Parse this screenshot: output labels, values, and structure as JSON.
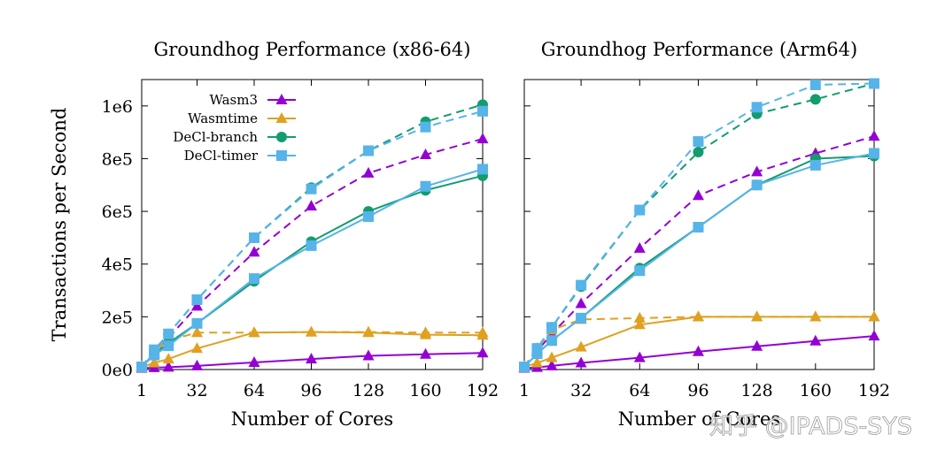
{
  "watermark": "知乎 @IPADS-SYS",
  "chart_data": [
    {
      "type": "line",
      "title": "Groundhog Performance (x86-64)",
      "xlabel": "Number of Cores",
      "ylabel": "Transactions per Second",
      "xlim": [
        1,
        192
      ],
      "ylim": [
        0,
        1100000
      ],
      "xticks": [
        1,
        32,
        64,
        96,
        128,
        160,
        192
      ],
      "xtick_labels": [
        "1",
        "32",
        "64",
        "96",
        "128",
        "160",
        "192"
      ],
      "yticks": [
        0,
        200000,
        400000,
        600000,
        800000,
        1000000
      ],
      "ytick_labels": [
        "0e0",
        "2e5",
        "4e5",
        "6e5",
        "8e5",
        "1e6"
      ],
      "grid": false,
      "legend": {
        "position": "top-left",
        "entries": [
          {
            "label": "Wasm3",
            "color": "#9400d3",
            "marker": "triangle"
          },
          {
            "label": "Wasmtime",
            "color": "#e0a020",
            "marker": "triangle"
          },
          {
            "label": "DeCl-branch",
            "color": "#129c70",
            "marker": "circle"
          },
          {
            "label": "DeCl-timer",
            "color": "#56b4e9",
            "marker": "square"
          }
        ]
      },
      "series": [
        {
          "name": "Wasm3 (solid)",
          "color": "#9400d3",
          "marker": "triangle",
          "dash": false,
          "x": [
            1,
            8,
            16,
            32,
            64,
            96,
            128,
            160,
            192
          ],
          "y": [
            5000,
            7000,
            9000,
            14000,
            27000,
            40000,
            52000,
            58000,
            63000
          ]
        },
        {
          "name": "Wasm3 (dashed)",
          "color": "#9400d3",
          "marker": "triangle",
          "dash": true,
          "x": [
            1,
            8,
            16,
            32,
            64,
            96,
            128,
            160,
            192
          ],
          "y": [
            10000,
            60000,
            120000,
            240000,
            445000,
            620000,
            745000,
            815000,
            875000
          ]
        },
        {
          "name": "Wasmtime (solid)",
          "color": "#e0a020",
          "marker": "triangle",
          "dash": false,
          "x": [
            1,
            8,
            16,
            32,
            64,
            96,
            128,
            160,
            192
          ],
          "y": [
            10000,
            25000,
            40000,
            80000,
            140000,
            142000,
            140000,
            132000,
            130000
          ]
        },
        {
          "name": "Wasmtime (dashed)",
          "color": "#e0a020",
          "marker": "triangle",
          "dash": true,
          "x": [
            1,
            8,
            16,
            32,
            64,
            96,
            128,
            160,
            192
          ],
          "y": [
            10000,
            70000,
            110000,
            140000,
            140000,
            142000,
            142000,
            140000,
            140000
          ]
        },
        {
          "name": "DeCl-branch (solid)",
          "color": "#129c70",
          "marker": "circle",
          "dash": false,
          "x": [
            1,
            8,
            16,
            32,
            64,
            96,
            128,
            160,
            192
          ],
          "y": [
            10000,
            60000,
            100000,
            175000,
            335000,
            485000,
            600000,
            680000,
            735000
          ]
        },
        {
          "name": "DeCl-branch (dashed)",
          "color": "#129c70",
          "marker": "circle",
          "dash": true,
          "x": [
            1,
            8,
            16,
            32,
            64,
            96,
            128,
            160,
            192
          ],
          "y": [
            10000,
            70000,
            135000,
            265000,
            500000,
            690000,
            830000,
            940000,
            1005000
          ]
        },
        {
          "name": "DeCl-timer (solid)",
          "color": "#56b4e9",
          "marker": "square",
          "dash": false,
          "x": [
            1,
            8,
            16,
            32,
            64,
            96,
            128,
            160,
            192
          ],
          "y": [
            10000,
            55000,
            90000,
            175000,
            345000,
            470000,
            580000,
            695000,
            760000
          ]
        },
        {
          "name": "DeCl-timer (dashed)",
          "color": "#56b4e9",
          "marker": "square",
          "dash": true,
          "x": [
            1,
            8,
            16,
            32,
            64,
            96,
            128,
            160,
            192
          ],
          "y": [
            10000,
            75000,
            135000,
            265000,
            500000,
            685000,
            830000,
            920000,
            980000
          ]
        }
      ]
    },
    {
      "type": "line",
      "title": "Groundhog Performance (Arm64)",
      "xlabel": "Number of Cores",
      "ylabel": "",
      "xlim": [
        1,
        192
      ],
      "ylim": [
        0,
        1100000
      ],
      "xticks": [
        1,
        32,
        64,
        96,
        128,
        160,
        192
      ],
      "xtick_labels": [
        "1",
        "32",
        "64",
        "96",
        "128",
        "160",
        "192"
      ],
      "yticks": [
        0,
        200000,
        400000,
        600000,
        800000,
        1000000
      ],
      "ytick_labels": [],
      "grid": false,
      "series": [
        {
          "name": "Wasm3 (solid)",
          "color": "#9400d3",
          "marker": "triangle",
          "dash": false,
          "x": [
            1,
            8,
            16,
            32,
            64,
            96,
            128,
            160,
            192
          ],
          "y": [
            5000,
            8000,
            14000,
            25000,
            45000,
            68000,
            88000,
            108000,
            127000
          ]
        },
        {
          "name": "Wasm3 (dashed)",
          "color": "#9400d3",
          "marker": "triangle",
          "dash": true,
          "x": [
            1,
            8,
            16,
            32,
            64,
            96,
            128,
            160,
            192
          ],
          "y": [
            10000,
            70000,
            135000,
            250000,
            460000,
            660000,
            750000,
            820000,
            885000
          ]
        },
        {
          "name": "Wasmtime (solid)",
          "color": "#e0a020",
          "marker": "triangle",
          "dash": false,
          "x": [
            1,
            8,
            16,
            32,
            64,
            96,
            128,
            160,
            192
          ],
          "y": [
            10000,
            25000,
            45000,
            85000,
            170000,
            200000,
            200000,
            200000,
            200000
          ]
        },
        {
          "name": "Wasmtime (dashed)",
          "color": "#e0a020",
          "marker": "triangle",
          "dash": true,
          "x": [
            1,
            8,
            16,
            32,
            64,
            96,
            128,
            160,
            192
          ],
          "y": [
            10000,
            80000,
            150000,
            190000,
            195000,
            200000,
            200000,
            200000,
            200000
          ]
        },
        {
          "name": "DeCl-branch (solid)",
          "color": "#129c70",
          "marker": "circle",
          "dash": false,
          "x": [
            1,
            8,
            16,
            32,
            64,
            96,
            128,
            160,
            192
          ],
          "y": [
            10000,
            60000,
            110000,
            195000,
            385000,
            540000,
            700000,
            800000,
            810000
          ]
        },
        {
          "name": "DeCl-branch (dashed)",
          "color": "#129c70",
          "marker": "circle",
          "dash": true,
          "x": [
            1,
            8,
            16,
            32,
            64,
            96,
            128,
            160,
            192
          ],
          "y": [
            10000,
            80000,
            160000,
            315000,
            605000,
            825000,
            970000,
            1025000,
            1085000
          ]
        },
        {
          "name": "DeCl-timer (solid)",
          "color": "#56b4e9",
          "marker": "square",
          "dash": false,
          "x": [
            1,
            8,
            16,
            32,
            64,
            96,
            128,
            160,
            192
          ],
          "y": [
            10000,
            60000,
            110000,
            195000,
            375000,
            540000,
            700000,
            775000,
            820000
          ]
        },
        {
          "name": "DeCl-timer (dashed)",
          "color": "#56b4e9",
          "marker": "square",
          "dash": true,
          "x": [
            1,
            8,
            16,
            32,
            64,
            96,
            128,
            160,
            192
          ],
          "y": [
            10000,
            80000,
            160000,
            320000,
            605000,
            865000,
            995000,
            1080000,
            1085000
          ]
        }
      ]
    }
  ]
}
